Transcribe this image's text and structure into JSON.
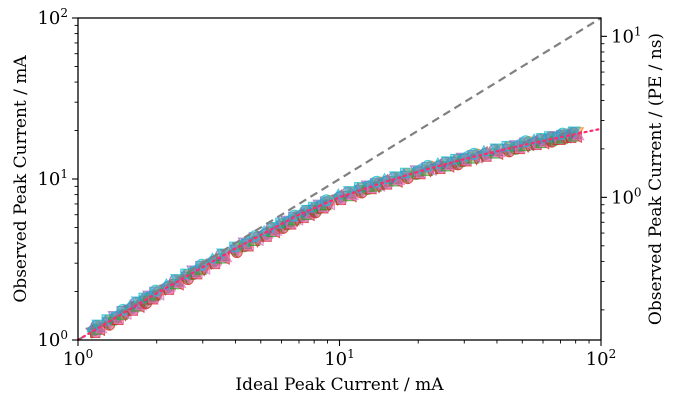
{
  "chart_data": {
    "type": "scatter",
    "title": "",
    "xlabel": "Ideal Peak Current / mA",
    "ylabel": "Observed Peak Current / mA",
    "y2label": "Observed Peak Current / (PE / ns)",
    "x_scale": "log",
    "y_scale": "log",
    "y2_scale": "log",
    "xlim": [
      1,
      100
    ],
    "ylim": [
      1,
      100
    ],
    "y2lim": [
      0.13,
      13
    ],
    "grid": false,
    "legend": "none",
    "x_ticks": [
      {
        "value": 1,
        "base": "10",
        "exp": "0"
      },
      {
        "value": 10,
        "base": "10",
        "exp": "1"
      },
      {
        "value": 100,
        "base": "10",
        "exp": "2"
      }
    ],
    "y_ticks": [
      {
        "value": 1,
        "base": "10",
        "exp": "0"
      },
      {
        "value": 10,
        "base": "10",
        "exp": "1"
      },
      {
        "value": 100,
        "base": "10",
        "exp": "2"
      }
    ],
    "y2_ticks": [
      {
        "value": 1,
        "base": "10",
        "exp": "0"
      },
      {
        "value": 10,
        "base": "10",
        "exp": "1"
      }
    ],
    "reference_line": {
      "style": "dashed",
      "color": "#808080",
      "points": [
        [
          1,
          1
        ],
        [
          100,
          100
        ]
      ]
    },
    "fit_line": {
      "style": "dotted",
      "color": "#ff2a6d",
      "points": [
        [
          1,
          1
        ],
        [
          2,
          1.95
        ],
        [
          4,
          3.7
        ],
        [
          7,
          6.0
        ],
        [
          10,
          7.7
        ],
        [
          15,
          9.6
        ],
        [
          20,
          11.1
        ],
        [
          30,
          13.3
        ],
        [
          50,
          16.2
        ],
        [
          75,
          18.6
        ],
        [
          100,
          20.5
        ]
      ]
    },
    "series_colors": [
      "#1f77b4",
      "#ff7f0e",
      "#2ca02c",
      "#d62728",
      "#9467bd",
      "#e377c2",
      "#17becf"
    ],
    "markers": [
      "circle",
      "triangle-up",
      "triangle-down",
      "square",
      "triangle-left"
    ],
    "points": [
      [
        1.15,
        1.15
      ],
      [
        1.2,
        1.2
      ],
      [
        1.3,
        1.29
      ],
      [
        1.4,
        1.38
      ],
      [
        1.5,
        1.48
      ],
      [
        1.6,
        1.58
      ],
      [
        1.7,
        1.67
      ],
      [
        1.8,
        1.76
      ],
      [
        1.9,
        1.85
      ],
      [
        2.0,
        1.95
      ],
      [
        2.2,
        2.13
      ],
      [
        2.4,
        2.3
      ],
      [
        2.6,
        2.48
      ],
      [
        2.8,
        2.65
      ],
      [
        3.0,
        2.82
      ],
      [
        3.3,
        3.08
      ],
      [
        3.6,
        3.32
      ],
      [
        4.0,
        3.65
      ],
      [
        4.4,
        3.95
      ],
      [
        4.8,
        4.25
      ],
      [
        5.2,
        4.55
      ],
      [
        5.6,
        4.85
      ],
      [
        6.0,
        5.15
      ],
      [
        6.4,
        5.4
      ],
      [
        6.8,
        5.7
      ],
      [
        7.2,
        5.95
      ],
      [
        7.6,
        6.2
      ],
      [
        8.0,
        6.45
      ],
      [
        8.5,
        6.8
      ],
      [
        9.0,
        7.1
      ],
      [
        10,
        7.7
      ],
      [
        11,
        8.1
      ],
      [
        12,
        8.55
      ],
      [
        13,
        8.95
      ],
      [
        14,
        9.25
      ],
      [
        15,
        9.6
      ],
      [
        16.5,
        10.0
      ],
      [
        18,
        10.5
      ],
      [
        20,
        11.1
      ],
      [
        22,
        11.6
      ],
      [
        24,
        12.0
      ],
      [
        26,
        12.4
      ],
      [
        28,
        12.8
      ],
      [
        30,
        13.3
      ],
      [
        33,
        13.8
      ],
      [
        36,
        14.3
      ],
      [
        40,
        14.9
      ],
      [
        44,
        15.4
      ],
      [
        48,
        15.9
      ],
      [
        52,
        16.5
      ],
      [
        56,
        16.9
      ],
      [
        60,
        17.3
      ],
      [
        64,
        17.7
      ],
      [
        68,
        18.1
      ],
      [
        72,
        18.4
      ],
      [
        76,
        18.7
      ],
      [
        80,
        19.0
      ]
    ]
  }
}
